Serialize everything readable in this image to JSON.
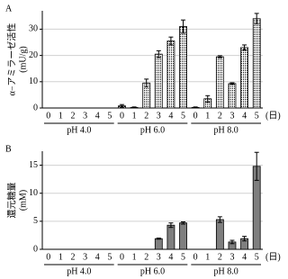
{
  "chart_data": [
    {
      "type": "bar",
      "panel": "A",
      "ylabel": "α−アミラーゼ活性",
      "yunit": "(mU/g)",
      "categories": [
        "0",
        "1",
        "2",
        "3",
        "4",
        "5",
        "0",
        "1",
        "2",
        "3",
        "4",
        "5",
        "0",
        "1",
        "2",
        "3",
        "4",
        "5"
      ],
      "groups": [
        "pH 4.0",
        "pH 6.0",
        "pH 8.0"
      ],
      "xunit": "(日)",
      "values": [
        0,
        0,
        0,
        0,
        0,
        0,
        0.8,
        0.2,
        9.5,
        20.5,
        25.5,
        31,
        0.2,
        3.5,
        19.5,
        9.3,
        23,
        34
      ],
      "errors": [
        null,
        null,
        null,
        null,
        null,
        null,
        0.5,
        0.2,
        1.5,
        1.3,
        1.5,
        2.5,
        0.2,
        1.2,
        0.4,
        0.3,
        1,
        2
      ],
      "color": "#000000",
      "pattern": "dots",
      "ylim": [
        0,
        37
      ],
      "yticks": [
        0,
        10,
        20,
        30
      ],
      "grid": true
    },
    {
      "type": "bar",
      "panel": "B",
      "ylabel": "還元糖量",
      "yunit": "(mM)",
      "categories": [
        "0",
        "1",
        "2",
        "3",
        "4",
        "5",
        "0",
        "1",
        "2",
        "3",
        "4",
        "5",
        "0",
        "1",
        "2",
        "3",
        "4",
        "5"
      ],
      "groups": [
        "pH 4.0",
        "pH 6.0",
        "pH 8.0"
      ],
      "xunit": "(日)",
      "values": [
        0,
        0,
        0,
        0,
        0,
        0,
        0,
        0,
        0,
        1.9,
        4.3,
        4.7,
        0,
        0,
        5.3,
        1.3,
        1.9,
        14.8
      ],
      "errors": [
        null,
        null,
        null,
        null,
        null,
        null,
        null,
        null,
        null,
        0.1,
        0.4,
        0.2,
        null,
        null,
        0.5,
        0.3,
        0.4,
        2.5
      ],
      "color": "#7f7f7f",
      "pattern": "solid",
      "ylim": [
        0,
        17.5
      ],
      "yticks": [
        0,
        5,
        10,
        15
      ],
      "grid": true
    }
  ]
}
